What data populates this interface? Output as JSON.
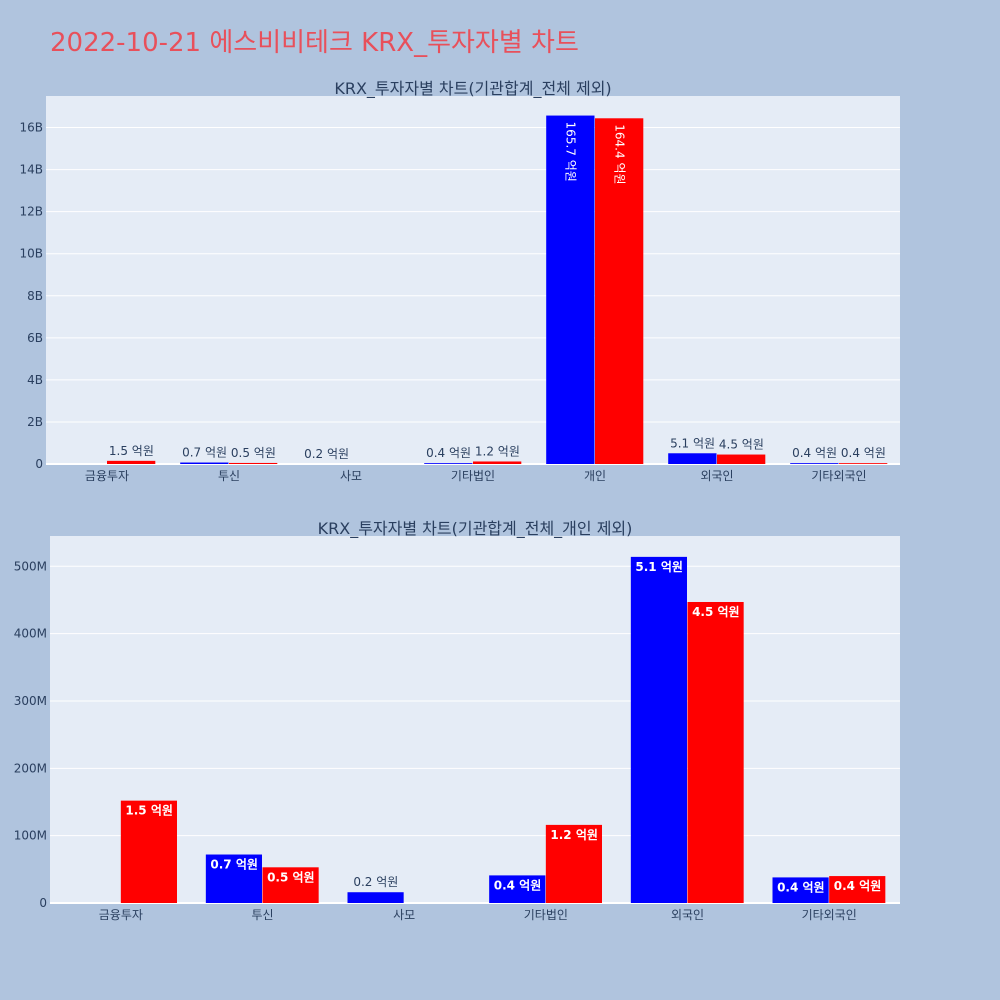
{
  "page": {
    "title": "2022-10-21 에스비비테크 KRX_투자자별 차트"
  },
  "colors": {
    "background": "#b0c4de",
    "plot_bg": "#e5ecf6",
    "grid": "#ffffff",
    "title": "#e8505b",
    "axis_text": "#2a3f5f",
    "series_a": "#0000ff",
    "series_b": "#ff0000"
  },
  "chart_data": [
    {
      "type": "bar",
      "title": "KRX_투자자별 차트(기관합계_전체 제외)",
      "categories": [
        "금융투자",
        "투신",
        "사모",
        "기타법인",
        "개인",
        "외국인",
        "기타외국인"
      ],
      "ylim": [
        0,
        17500000000
      ],
      "yticks": [
        0,
        2000000000,
        4000000000,
        6000000000,
        8000000000,
        10000000000,
        12000000000,
        14000000000,
        16000000000
      ],
      "ytick_labels": [
        "0",
        "2B",
        "4B",
        "6B",
        "8B",
        "10B",
        "12B",
        "14B",
        "16B"
      ],
      "grid": true,
      "legend": "none",
      "series": [
        {
          "color": "#0000ff",
          "values": [
            null,
            70000000,
            null,
            40000000,
            16570000000,
            510000000,
            40000000
          ],
          "labels": [
            "",
            "0.7 억원",
            "",
            "0.4 억원",
            "165.7 억원",
            "5.1 억원",
            "0.4 억원"
          ]
        },
        {
          "color": "#ff0000",
          "values": [
            150000000,
            50000000,
            null,
            120000000,
            16440000000,
            450000000,
            40000000
          ],
          "labels": [
            "1.5 억원",
            "0.5 억원",
            "",
            "1.2 억원",
            "164.4 억원",
            "4.5 억원",
            "0.4 억원"
          ]
        }
      ],
      "single_labels": [
        null,
        null,
        "0.2 억원",
        null,
        null,
        null,
        null
      ]
    },
    {
      "type": "bar",
      "title": "KRX_투자자별 차트(기관합계_전체_개인 제외)",
      "categories": [
        "금융투자",
        "투신",
        "사모",
        "기타법인",
        "외국인",
        "기타외국인"
      ],
      "ylim": [
        0,
        545000000
      ],
      "yticks": [
        0,
        100000000,
        200000000,
        300000000,
        400000000,
        500000000
      ],
      "ytick_labels": [
        "0",
        "100M",
        "200M",
        "300M",
        "400M",
        "500M"
      ],
      "grid": true,
      "legend": "none",
      "series": [
        {
          "color": "#0000ff",
          "values": [
            null,
            72000000,
            16000000,
            41000000,
            514000000,
            38000000
          ],
          "labels": [
            "",
            "0.7 억원",
            "0.2 억원",
            "0.4 억원",
            "5.1 억원",
            "0.4 억원"
          ]
        },
        {
          "color": "#ff0000",
          "values": [
            152000000,
            53000000,
            null,
            116000000,
            447000000,
            40000000
          ],
          "labels": [
            "1.5 억원",
            "0.5 억원",
            "",
            "1.2 억원",
            "4.5 억원",
            "0.4 억원"
          ]
        }
      ]
    }
  ]
}
